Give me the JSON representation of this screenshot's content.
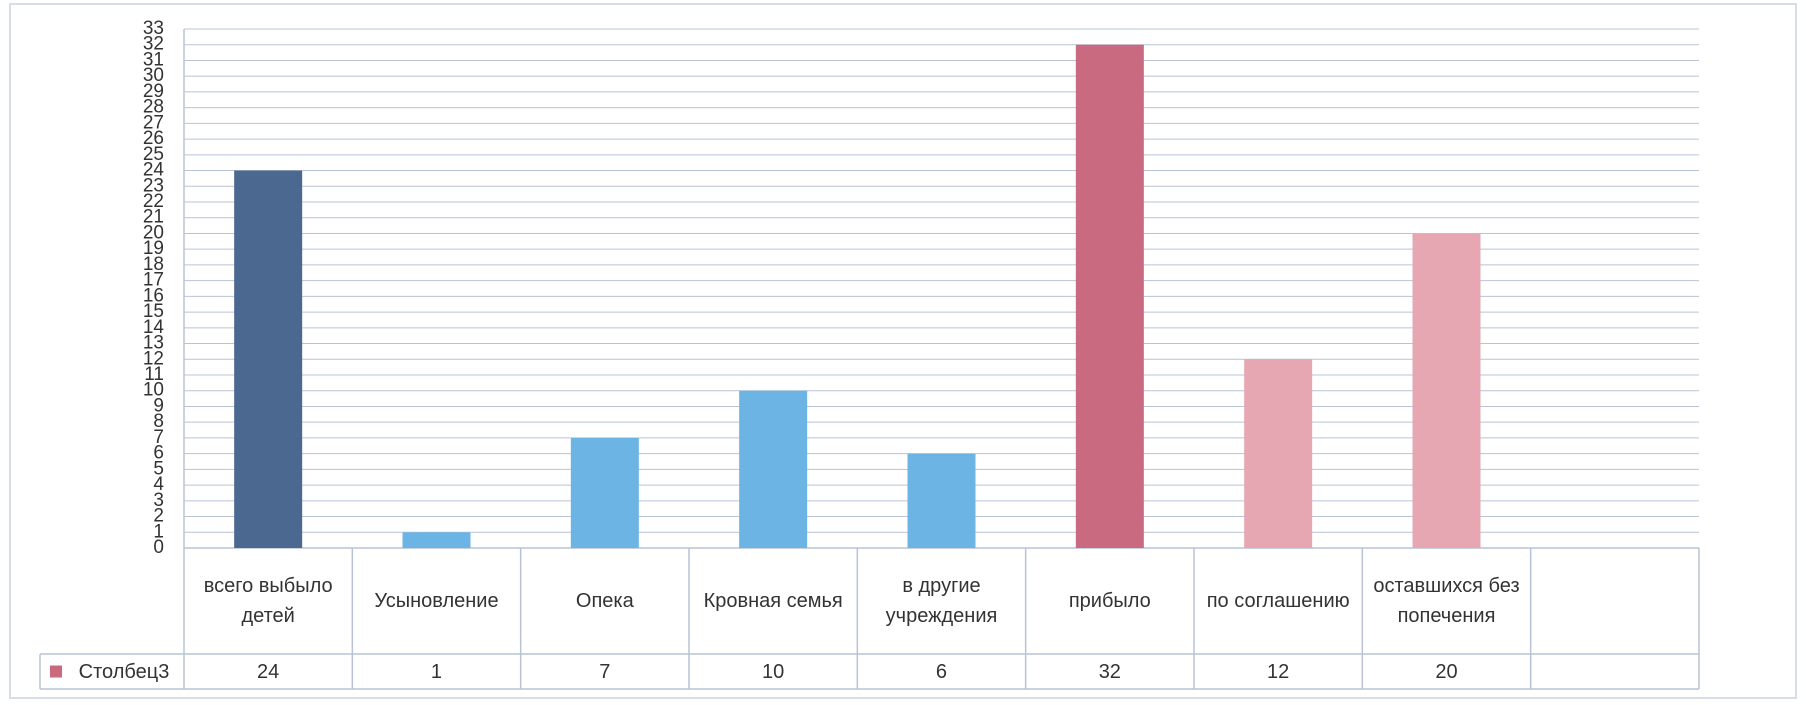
{
  "chart_data": {
    "type": "bar",
    "categories": [
      "всего выбыло детей",
      "Усыновление",
      "Опека",
      "Кровная семья",
      "в другие учреждения",
      "прибыло",
      "по соглашению",
      "оставшихся без попечения",
      null
    ],
    "series": [
      {
        "name": "Столбец3",
        "color": "#c96a80",
        "values": [
          24,
          1,
          7,
          10,
          6,
          32,
          12,
          20,
          null
        ],
        "colors": [
          "#4a6890",
          "#6cb4e4",
          "#6cb4e4",
          "#6cb4e4",
          "#6cb4e4",
          "#c96a80",
          "#e6a7b2",
          "#e6a7b2",
          null
        ]
      }
    ],
    "ylim": [
      0,
      33
    ],
    "yticks": [
      0,
      1,
      2,
      3,
      4,
      5,
      6,
      7,
      8,
      9,
      10,
      11,
      12,
      13,
      14,
      15,
      16,
      17,
      18,
      19,
      20,
      21,
      22,
      23,
      24,
      25,
      26,
      27,
      28,
      29,
      30,
      31,
      32,
      33
    ],
    "grid": true
  }
}
